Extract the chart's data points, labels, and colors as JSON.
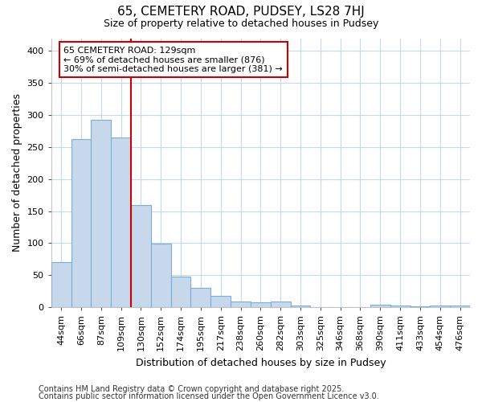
{
  "title1": "65, CEMETERY ROAD, PUDSEY, LS28 7HJ",
  "title2": "Size of property relative to detached houses in Pudsey",
  "xlabel": "Distribution of detached houses by size in Pudsey",
  "ylabel": "Number of detached properties",
  "footnote1": "Contains HM Land Registry data © Crown copyright and database right 2025.",
  "footnote2": "Contains public sector information licensed under the Open Government Licence v3.0.",
  "annotation_line1": "65 CEMETERY ROAD: 129sqm",
  "annotation_line2": "← 69% of detached houses are smaller (876)",
  "annotation_line3": "30% of semi-detached houses are larger (381) →",
  "bar_color": "#c8d8ec",
  "bar_edge_color": "#7aafd4",
  "vline_color": "#cc0000",
  "annotation_box_edgecolor": "#cc0000",
  "annotation_box_facecolor": "#ffffff",
  "grid_color": "#c8d8ec",
  "background_color": "#ffffff",
  "categories": [
    "44sqm",
    "66sqm",
    "87sqm",
    "109sqm",
    "130sqm",
    "152sqm",
    "174sqm",
    "195sqm",
    "217sqm",
    "238sqm",
    "260sqm",
    "282sqm",
    "303sqm",
    "325sqm",
    "346sqm",
    "368sqm",
    "390sqm",
    "411sqm",
    "433sqm",
    "454sqm",
    "476sqm"
  ],
  "values": [
    70,
    263,
    293,
    265,
    160,
    99,
    48,
    30,
    17,
    9,
    7,
    9,
    2,
    0,
    0,
    0,
    4,
    3,
    1,
    3,
    2
  ],
  "ylim": [
    0,
    420
  ],
  "yticks": [
    0,
    50,
    100,
    150,
    200,
    250,
    300,
    350,
    400
  ],
  "vline_x_index": 4,
  "title1_fontsize": 11,
  "title2_fontsize": 9,
  "axis_label_fontsize": 9,
  "tick_fontsize": 8,
  "annotation_fontsize": 8,
  "footnote_fontsize": 7
}
